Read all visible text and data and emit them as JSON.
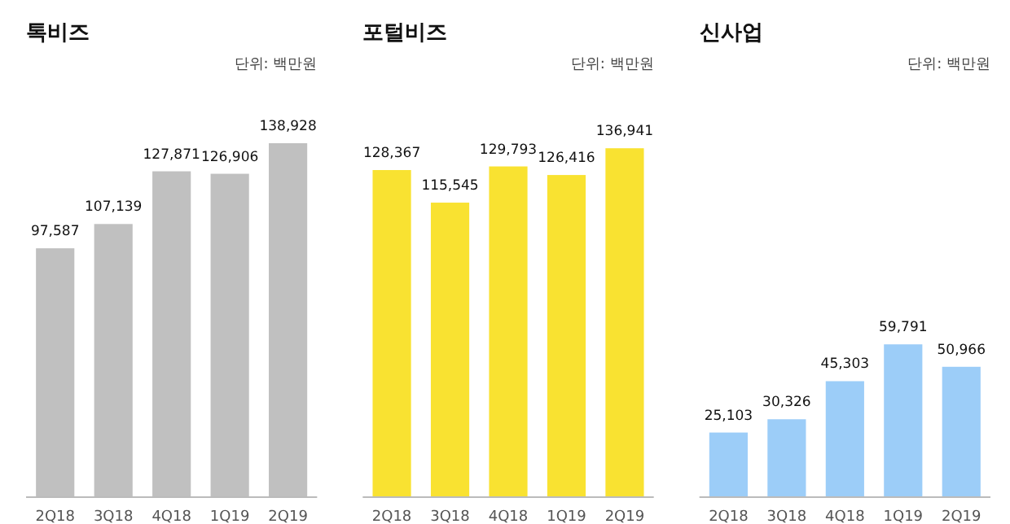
{
  "chart_data": [
    {
      "type": "bar",
      "title": "톡비즈",
      "subtitle": "단위: 백만원",
      "categories": [
        "2Q18",
        "3Q18",
        "4Q18",
        "1Q19",
        "2Q19"
      ],
      "values": [
        97587,
        107139,
        127871,
        126906,
        138928
      ],
      "value_labels": [
        "97,587",
        "107,139",
        "127,871",
        "126,906",
        "138,928"
      ],
      "color": "#c0c0c0"
    },
    {
      "type": "bar",
      "title": "포털비즈",
      "subtitle": "단위: 백만원",
      "categories": [
        "2Q18",
        "3Q18",
        "4Q18",
        "1Q19",
        "2Q19"
      ],
      "values": [
        128367,
        115545,
        129793,
        126416,
        136941
      ],
      "value_labels": [
        "128,367",
        "115,545",
        "129,793",
        "126,416",
        "136,941"
      ],
      "color": "#f9e231"
    },
    {
      "type": "bar",
      "title": "신사업",
      "subtitle": "단위: 백만원",
      "categories": [
        "2Q18",
        "3Q18",
        "4Q18",
        "1Q19",
        "2Q19"
      ],
      "values": [
        25103,
        30326,
        45303,
        59791,
        50966
      ],
      "value_labels": [
        "25,103",
        "30,326",
        "45,303",
        "59,791",
        "50,966"
      ],
      "color": "#9ccdf8"
    }
  ]
}
